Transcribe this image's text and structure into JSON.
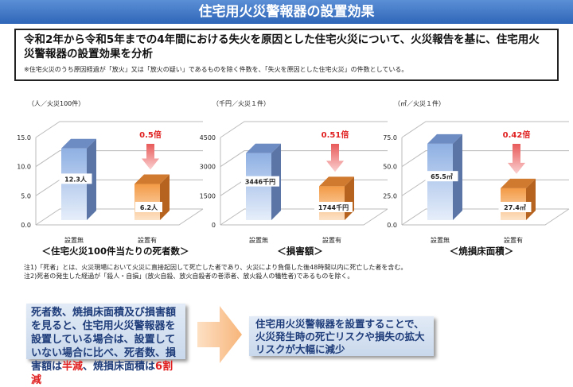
{
  "title": "住宅用火災警報器の設置効果",
  "summary": {
    "main": "令和2年から令和5年までの4年間における失火を原因とした住宅火災について、火災報告を基に、住宅用火災警報器の設置効果を分析",
    "note": "※住宅火災のうち原因経過が「放火」又は「放火の疑い」であるものを除く件数を、「失火を原因とした住宅火災」の件数としている。"
  },
  "chart_data": [
    {
      "type": "bar",
      "title": "＜住宅火災100件当たりの死者数＞",
      "unit": "（人／火災100件）",
      "categories": [
        "設置無",
        "設置有"
      ],
      "values": [
        12.3,
        6.2
      ],
      "data_labels": [
        "12.3人",
        "6.2人"
      ],
      "ratio_label": "0.5倍",
      "ylim": [
        0,
        15
      ],
      "ticks": [
        "0.0",
        "5.0",
        "10.0",
        "15.0"
      ],
      "grid": true
    },
    {
      "type": "bar",
      "title": "＜損害額＞",
      "unit": "（千円／火災１件）",
      "categories": [
        "設置無",
        "設置有"
      ],
      "values": [
        3446,
        1744
      ],
      "data_labels": [
        "3446千円",
        "1744千円"
      ],
      "ratio_label": "0.51倍",
      "ylim": [
        0,
        4500
      ],
      "ticks": [
        "0",
        "1500",
        "3000",
        "4500"
      ],
      "grid": true
    },
    {
      "type": "bar",
      "title": "＜焼損床面積＞",
      "unit": "（㎡／火災１件）",
      "categories": [
        "設置無",
        "設置有"
      ],
      "values": [
        65.5,
        27.4
      ],
      "data_labels": [
        "65.5㎡",
        "27.4㎡"
      ],
      "ratio_label": "0.42倍",
      "ylim": [
        0,
        75
      ],
      "ticks": [
        "0.0",
        "25.0",
        "50.0",
        "75.0"
      ],
      "grid": true
    }
  ],
  "colors": {
    "no_alarm": "#8fb0e3",
    "with_alarm": "#f39a45",
    "ratio": "#e02020",
    "title_bar": "#3a70c0"
  },
  "notes": [
    "注1)「死者」とは、火災現場において火災に直接起因して死亡した者であり、火災により負傷した後48時間以内に死亡した者を含む。",
    "注2)死者の発生した経過が「殺人・自損」(放火自殺、放火自殺者の巻添者、放火殺人の犠牲者)であるものを除く。"
  ],
  "conclusion": {
    "left_a": "死者数、焼損床面積及び損害額を見ると、住宅用火災警報器を設置している場合は、設置していない場合に比べ、死者数、損害額は",
    "left_red1": "半減",
    "left_b": "、焼損床面積は",
    "left_red2": "6割減",
    "right": "住宅用火災警報器を設置することで、火災発生時の死亡リスクや損失の拡大リスクが大幅に減少"
  }
}
